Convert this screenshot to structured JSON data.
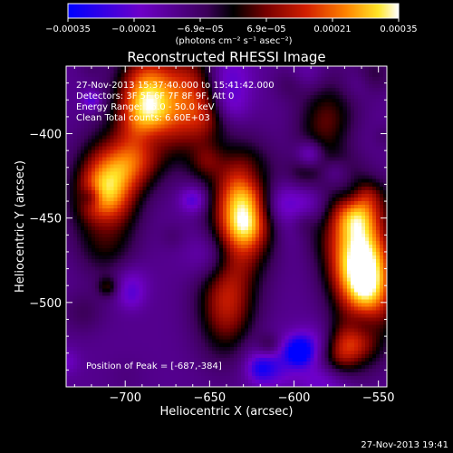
{
  "chart_data": {
    "type": "heatmap",
    "title": "Reconstructed RHESSI Image",
    "xlabel": "Heliocentric X (arcsec)",
    "ylabel": "Heliocentric Y (arcsec)",
    "xlim": [
      -735,
      -545
    ],
    "ylim": [
      -550,
      -360
    ],
    "x_ticks": [
      -700,
      -650,
      -600,
      -550
    ],
    "x_tick_labels": [
      "−700",
      "−650",
      "−600",
      "−550"
    ],
    "y_ticks": [
      -400,
      -450,
      -500
    ],
    "y_tick_labels": [
      "−400",
      "−450",
      "−500"
    ],
    "colorbar": {
      "range": [
        -0.00035,
        0.00035
      ],
      "tick_labels": [
        "−0.00035",
        "−0.00021",
        "−6.9e−05",
        "6.9e−05",
        "0.00021",
        "0.00035"
      ],
      "unit_label": "(photons cm⁻² s⁻¹ asec⁻²)",
      "colormap": "blue-purple-black-red-orange-yellow-white"
    },
    "annotations": {
      "time_range": "27-Nov-2013 15:37:40.000 to 15:41:42.000",
      "detectors": "Detectors: 3F 5F 6F 7F 8F 9F, Att 0",
      "energy": "Energy Range: 25.0 - 50.0 keV",
      "clean": "Clean    Total counts: 6.60E+03",
      "peak": "Position of Peak = [-687,-384]"
    },
    "hotspots": [
      {
        "x": -687,
        "y": -384,
        "amp": 1.0
      },
      {
        "x": -712,
        "y": -440,
        "amp": 1.0
      },
      {
        "x": -630,
        "y": -445,
        "amp": 1.0
      },
      {
        "x": -565,
        "y": -465,
        "amp": 0.85
      },
      {
        "x": -555,
        "y": -490,
        "amp": 0.75
      },
      {
        "x": -660,
        "y": -380,
        "amp": 0.6
      },
      {
        "x": -640,
        "y": -500,
        "amp": 0.55
      },
      {
        "x": -580,
        "y": -400,
        "amp": 0.45
      }
    ]
  },
  "footer": {
    "timestamp": "27-Nov-2013 19:41"
  }
}
